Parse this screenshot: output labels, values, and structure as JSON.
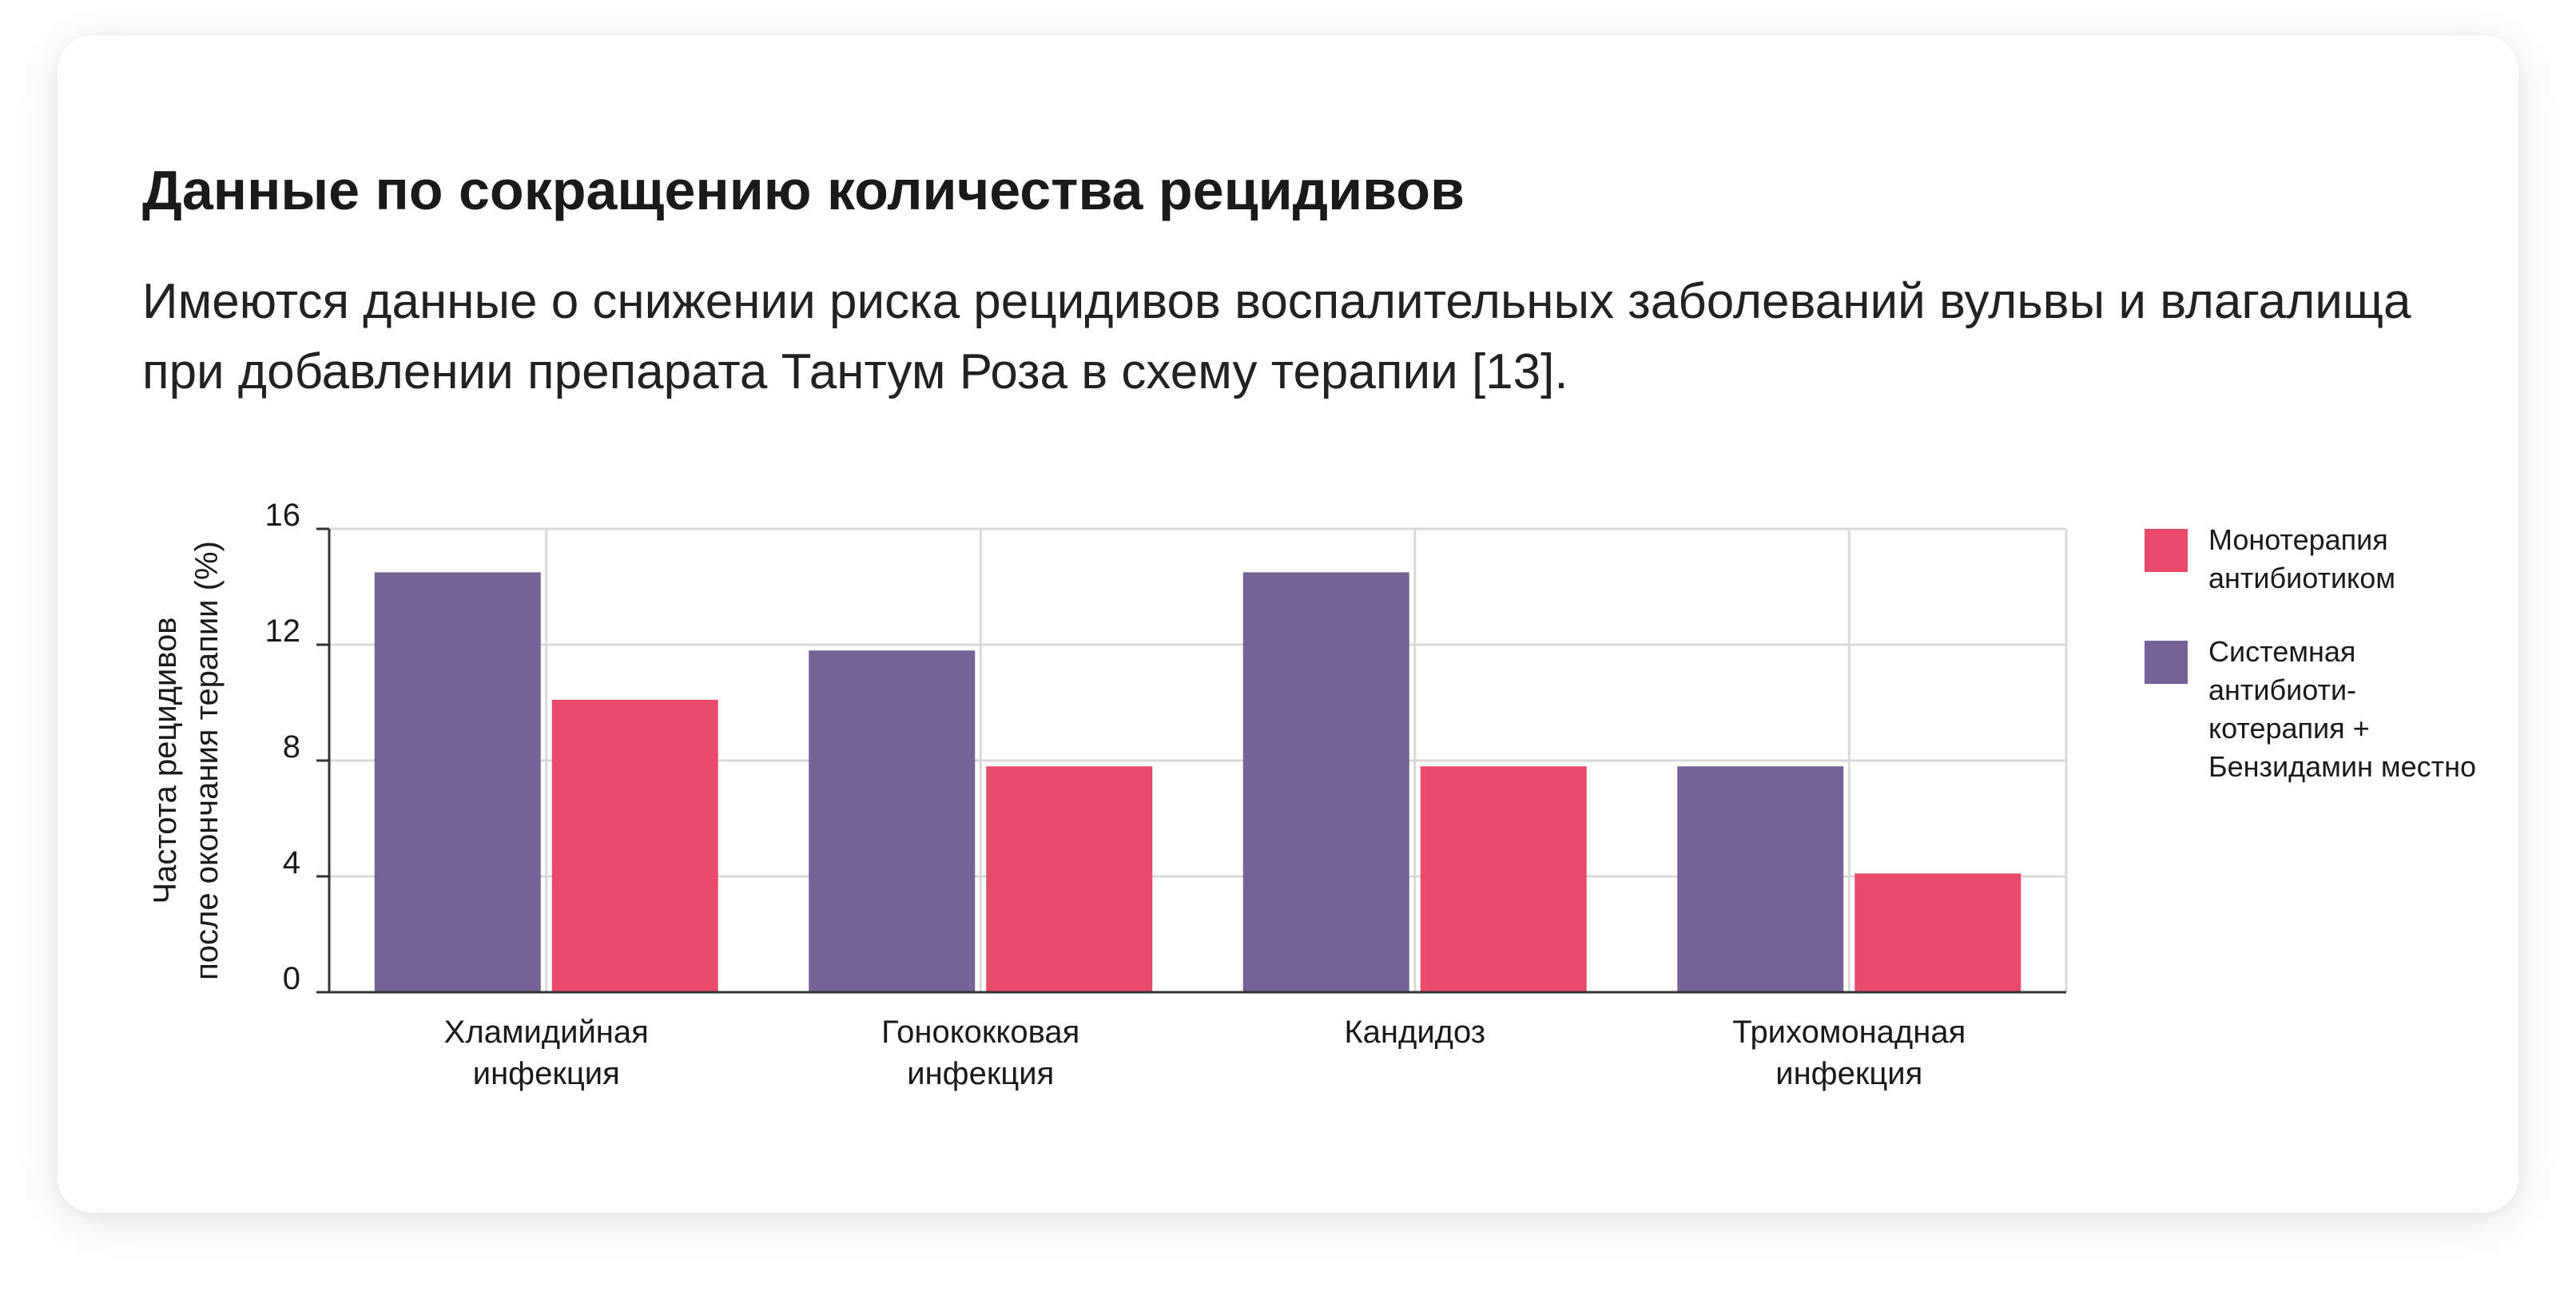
{
  "heading": "Данные по сокращению количества рецидивов",
  "description": "Имеются данные о снижении риска рецидивов воспалительных заболеваний вульвы и влагалища при добавлении препарата Тантум Роза в схему терапии [13].",
  "colors": {
    "mono": "#E84A6A",
    "combo": "#746395",
    "grid": "#D9D9D9",
    "axis": "#333333"
  },
  "legend": {
    "mono": "Монотерапия антибиотиком",
    "combo": "Системная антибиоти-котерапия + Бензидамин местно"
  },
  "chart_data": {
    "type": "bar",
    "ylabel": [
      "Частота рецидивов",
      "после окончания терапии (%)"
    ],
    "ylim": [
      0,
      16
    ],
    "yticks": [
      0,
      4,
      8,
      12,
      16
    ],
    "grid": true,
    "legend_position": "right",
    "categories": [
      [
        "Хламидийная",
        "инфекция"
      ],
      [
        "Гонококковая",
        "инфекция"
      ],
      [
        "Кандидоз"
      ],
      [
        "Трихомонадная",
        "инфекция"
      ]
    ],
    "series": [
      {
        "key": "combo",
        "values": [
          14.5,
          11.8,
          14.5,
          7.8
        ]
      },
      {
        "key": "mono",
        "values": [
          10.1,
          7.8,
          7.8,
          4.1
        ]
      }
    ]
  }
}
